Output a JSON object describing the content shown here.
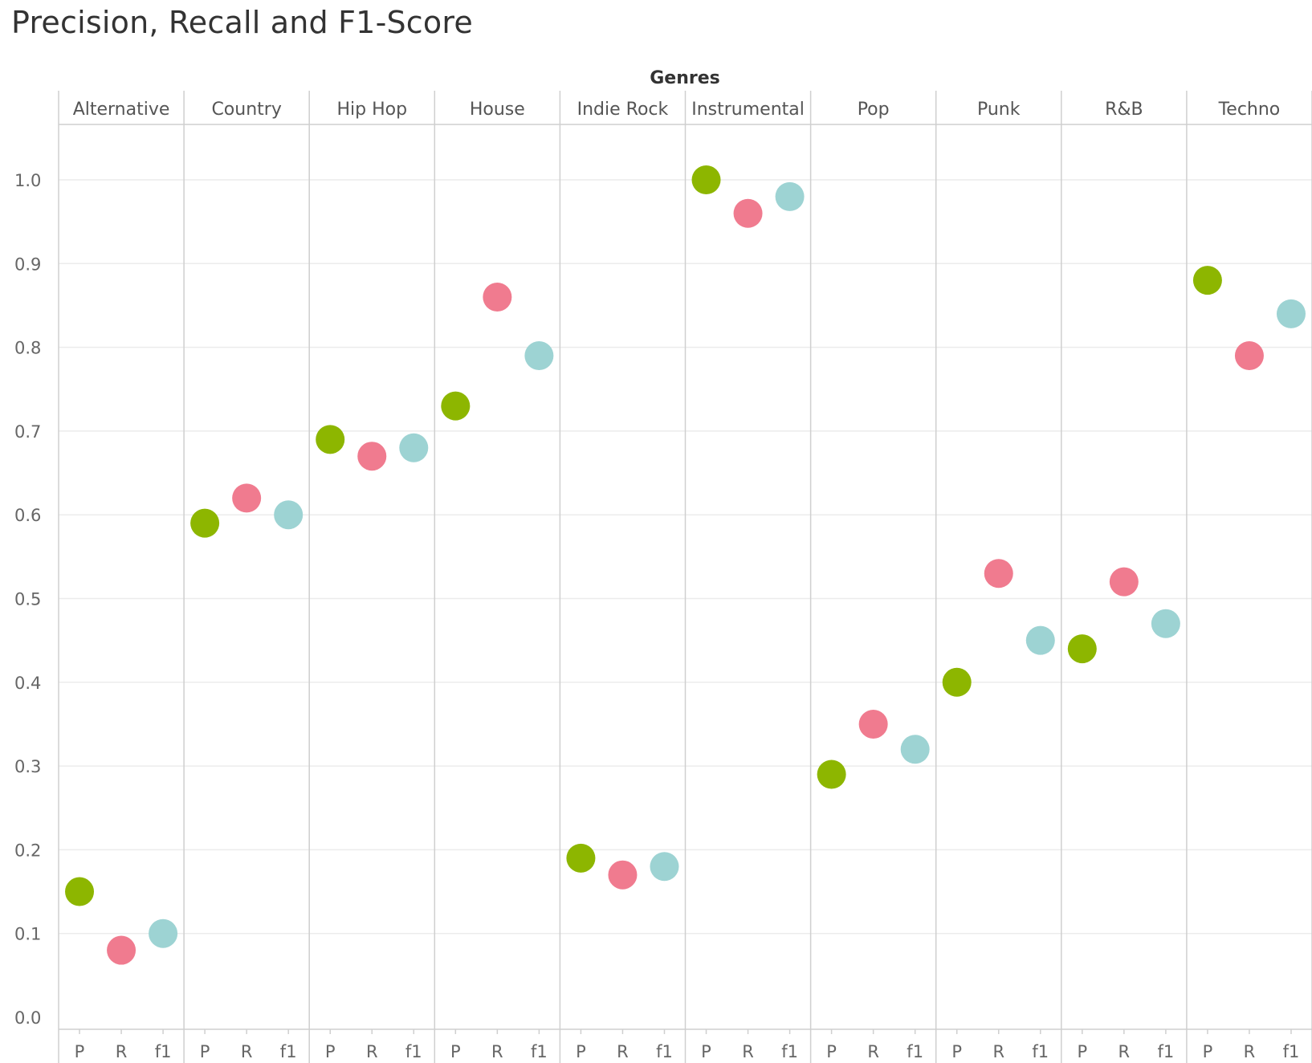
{
  "chart_data": {
    "type": "scatter",
    "title": "Precision, Recall and F1-Score",
    "column_axis_title": "Genres",
    "genres": [
      "Alternative",
      "Country",
      "Hip Hop",
      "House",
      "Indie Rock",
      "Instrumental",
      "Pop",
      "Punk",
      "R&B",
      "Techno"
    ],
    "metrics": [
      "P",
      "R",
      "f1"
    ],
    "series": [
      {
        "name": "P",
        "color": "#8db600",
        "values": [
          0.15,
          0.59,
          0.69,
          0.73,
          0.19,
          1.0,
          0.29,
          0.4,
          0.44,
          0.88
        ]
      },
      {
        "name": "R",
        "color": "#f07b8f",
        "values": [
          0.08,
          0.62,
          0.67,
          0.86,
          0.17,
          0.96,
          0.35,
          0.53,
          0.52,
          0.79
        ]
      },
      {
        "name": "f1",
        "color": "#9dd3d3",
        "values": [
          0.1,
          0.6,
          0.68,
          0.79,
          0.18,
          0.98,
          0.32,
          0.45,
          0.47,
          0.84
        ]
      }
    ],
    "y_ticks": [
      "0.0",
      "0.1",
      "0.2",
      "0.3",
      "0.4",
      "0.5",
      "0.6",
      "0.7",
      "0.8",
      "0.9",
      "1.0"
    ],
    "ylim": [
      0.0,
      1.0
    ],
    "grid": true,
    "legend": "none"
  }
}
